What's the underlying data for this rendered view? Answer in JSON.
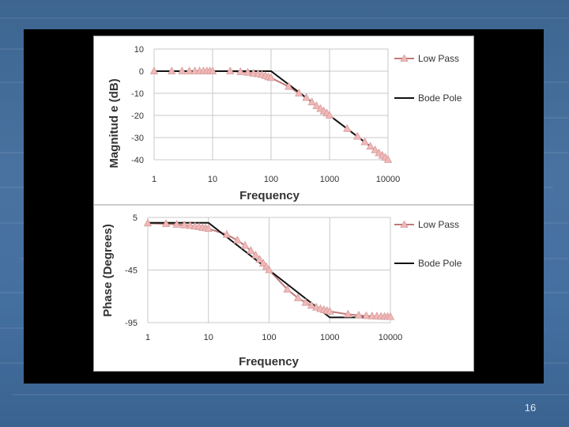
{
  "slide": {
    "page_number": "16"
  },
  "colors": {
    "background": "#4a72a0",
    "frame": "#000000",
    "low_pass_line": "#c07a7a",
    "low_pass_marker": "#f2b8b8",
    "bode_pole_line": "#111111"
  },
  "chart_data": [
    {
      "type": "line",
      "xscale": "log",
      "xlim": [
        1,
        10000
      ],
      "ylim": [
        -40,
        10
      ],
      "yticks": [
        10,
        0,
        -10,
        -20,
        -30,
        -40
      ],
      "xticks": [
        1,
        10,
        100,
        1000,
        10000
      ],
      "xlabel": "Frequency",
      "ylabel": "Magnitud e (dB)",
      "grid": true,
      "legend": "right",
      "series": [
        {
          "name": "Low Pass",
          "marker": "triangle",
          "x": [
            1,
            2,
            3,
            4,
            5,
            6,
            7,
            8,
            9,
            10,
            20,
            30,
            40,
            50,
            60,
            70,
            80,
            90,
            100,
            200,
            300,
            400,
            500,
            600,
            700,
            800,
            900,
            1000,
            2000,
            3000,
            4000,
            5000,
            6000,
            7000,
            8000,
            9000,
            10000
          ],
          "values": [
            0,
            0,
            0,
            0,
            0,
            0,
            0,
            0,
            0,
            0,
            0,
            -0.3,
            -0.6,
            -1,
            -1.3,
            -1.6,
            -2.1,
            -2.6,
            -3,
            -7,
            -10,
            -12,
            -14,
            -15.7,
            -17,
            -18.1,
            -19,
            -20,
            -26,
            -29.5,
            -32,
            -34,
            -35.6,
            -37,
            -38.1,
            -39,
            -40
          ]
        },
        {
          "name": "Bode Pole",
          "x": [
            1,
            100,
            10000
          ],
          "values": [
            0,
            0,
            -40
          ]
        }
      ]
    },
    {
      "type": "line",
      "xscale": "log",
      "xlim": [
        1,
        10000
      ],
      "ylim": [
        -95,
        5
      ],
      "yticks": [
        5,
        -45,
        -95
      ],
      "xticks": [
        1,
        10,
        100,
        1000,
        10000
      ],
      "xlabel": "Frequency",
      "ylabel": "Phase (Degrees)",
      "grid": true,
      "legend": "right",
      "series": [
        {
          "name": "Low Pass",
          "marker": "triangle",
          "x": [
            1,
            2,
            3,
            4,
            5,
            6,
            7,
            8,
            9,
            10,
            20,
            30,
            40,
            50,
            60,
            70,
            80,
            90,
            100,
            200,
            300,
            400,
            500,
            600,
            700,
            800,
            900,
            1000,
            2000,
            3000,
            4000,
            5000,
            6000,
            7000,
            8000,
            9000,
            10000
          ],
          "values": [
            -0.6,
            -1.1,
            -1.7,
            -2.3,
            -2.9,
            -3.4,
            -4,
            -4.6,
            -5.1,
            -5.7,
            -11.3,
            -16.7,
            -21.8,
            -26.6,
            -31,
            -35,
            -38.7,
            -42,
            -45,
            -63.4,
            -71.6,
            -76,
            -78.7,
            -80.5,
            -81.9,
            -82.9,
            -83.7,
            -84.3,
            -87.1,
            -88.1,
            -88.6,
            -88.9,
            -89,
            -89.2,
            -89.3,
            -89.4,
            -89.4
          ]
        },
        {
          "name": "Bode Pole",
          "x": [
            1,
            10,
            1000,
            10000
          ],
          "values": [
            0,
            0,
            -90,
            -90
          ]
        }
      ]
    }
  ]
}
